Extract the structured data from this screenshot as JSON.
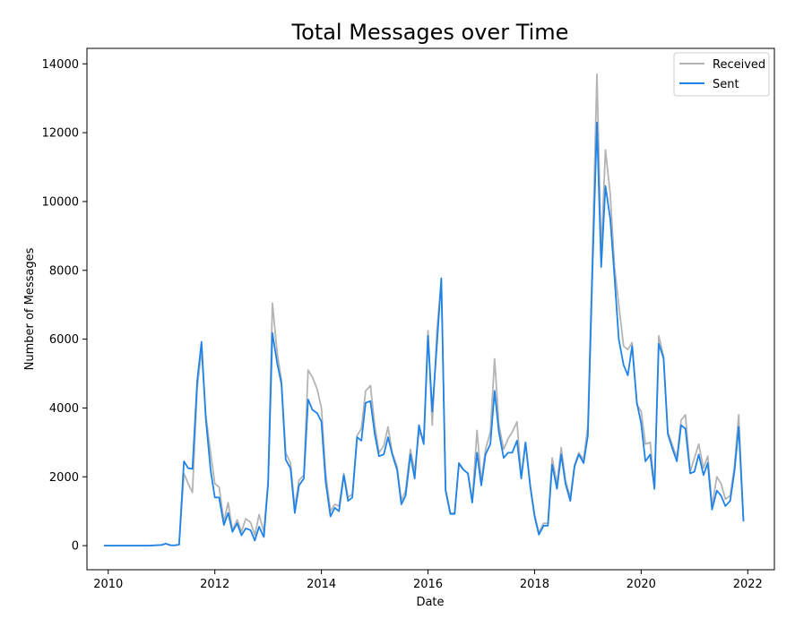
{
  "chart_data": {
    "type": "line",
    "title": "Total Messages over Time",
    "xlabel": "Date",
    "ylabel": "Number of Messages",
    "xlim": [
      2009.6,
      2022.5
    ],
    "ylim": [
      -700,
      14450
    ],
    "x_ticks": [
      2010,
      2012,
      2014,
      2016,
      2018,
      2020,
      2022
    ],
    "y_ticks": [
      0,
      2000,
      4000,
      6000,
      8000,
      10000,
      12000,
      14000
    ],
    "legend_position": "top-right",
    "grid": false,
    "series": [
      {
        "name": "Received",
        "color": "#b4b4b4",
        "points": [
          [
            2009.92,
            0
          ],
          [
            2010.5,
            0
          ],
          [
            2010.75,
            0
          ],
          [
            2011.0,
            20
          ],
          [
            2011.08,
            60
          ],
          [
            2011.17,
            10
          ],
          [
            2011.25,
            10
          ],
          [
            2011.33,
            30
          ],
          [
            2011.42,
            2100
          ],
          [
            2011.5,
            1800
          ],
          [
            2011.58,
            1550
          ],
          [
            2011.67,
            4600
          ],
          [
            2011.75,
            5700
          ],
          [
            2011.83,
            3800
          ],
          [
            2011.92,
            2700
          ],
          [
            2012.0,
            1800
          ],
          [
            2012.08,
            1700
          ],
          [
            2012.17,
            700
          ],
          [
            2012.25,
            1250
          ],
          [
            2012.33,
            450
          ],
          [
            2012.42,
            750
          ],
          [
            2012.5,
            400
          ],
          [
            2012.58,
            780
          ],
          [
            2012.67,
            680
          ],
          [
            2012.75,
            300
          ],
          [
            2012.83,
            900
          ],
          [
            2012.92,
            400
          ],
          [
            2013.0,
            1900
          ],
          [
            2013.08,
            7050
          ],
          [
            2013.17,
            5600
          ],
          [
            2013.25,
            4800
          ],
          [
            2013.33,
            2700
          ],
          [
            2013.42,
            2400
          ],
          [
            2013.5,
            1100
          ],
          [
            2013.58,
            1900
          ],
          [
            2013.67,
            2050
          ],
          [
            2013.75,
            5100
          ],
          [
            2013.83,
            4900
          ],
          [
            2013.92,
            4550
          ],
          [
            2014.0,
            4000
          ],
          [
            2014.08,
            2100
          ],
          [
            2014.17,
            1000
          ],
          [
            2014.25,
            1200
          ],
          [
            2014.33,
            1150
          ],
          [
            2014.42,
            2100
          ],
          [
            2014.5,
            1400
          ],
          [
            2014.58,
            1500
          ],
          [
            2014.67,
            3200
          ],
          [
            2014.75,
            3400
          ],
          [
            2014.83,
            4500
          ],
          [
            2014.92,
            4650
          ],
          [
            2015.0,
            3500
          ],
          [
            2015.08,
            2700
          ],
          [
            2015.17,
            2900
          ],
          [
            2015.25,
            3450
          ],
          [
            2015.33,
            2700
          ],
          [
            2015.42,
            2300
          ],
          [
            2015.5,
            1300
          ],
          [
            2015.58,
            1600
          ],
          [
            2015.67,
            2800
          ],
          [
            2015.75,
            2150
          ],
          [
            2015.83,
            3300
          ],
          [
            2015.92,
            3100
          ],
          [
            2016.0,
            6250
          ],
          [
            2016.08,
            3500
          ],
          [
            2016.17,
            6300
          ],
          [
            2016.25,
            7700
          ],
          [
            2016.33,
            1650
          ],
          [
            2016.42,
            950
          ],
          [
            2016.5,
            950
          ],
          [
            2016.58,
            2350
          ],
          [
            2016.67,
            2200
          ],
          [
            2016.75,
            2100
          ],
          [
            2016.83,
            1300
          ],
          [
            2016.92,
            3350
          ],
          [
            2017.0,
            1850
          ],
          [
            2017.08,
            2800
          ],
          [
            2017.17,
            3300
          ],
          [
            2017.25,
            5430
          ],
          [
            2017.33,
            3500
          ],
          [
            2017.42,
            2800
          ],
          [
            2017.5,
            3100
          ],
          [
            2017.58,
            3300
          ],
          [
            2017.67,
            3600
          ],
          [
            2017.75,
            2000
          ],
          [
            2017.83,
            3000
          ],
          [
            2017.92,
            1750
          ],
          [
            2018.0,
            900
          ],
          [
            2018.08,
            380
          ],
          [
            2018.17,
            650
          ],
          [
            2018.25,
            650
          ],
          [
            2018.33,
            2550
          ],
          [
            2018.42,
            1800
          ],
          [
            2018.5,
            2850
          ],
          [
            2018.58,
            1900
          ],
          [
            2018.67,
            1400
          ],
          [
            2018.75,
            2350
          ],
          [
            2018.83,
            2700
          ],
          [
            2018.92,
            2500
          ],
          [
            2019.0,
            3500
          ],
          [
            2019.08,
            8100
          ],
          [
            2019.17,
            13700
          ],
          [
            2019.25,
            8500
          ],
          [
            2019.33,
            11500
          ],
          [
            2019.42,
            10200
          ],
          [
            2019.5,
            8100
          ],
          [
            2019.58,
            7000
          ],
          [
            2019.67,
            5800
          ],
          [
            2019.75,
            5700
          ],
          [
            2019.83,
            5900
          ],
          [
            2019.92,
            4100
          ],
          [
            2020.0,
            3900
          ],
          [
            2020.08,
            2950
          ],
          [
            2020.17,
            3000
          ],
          [
            2020.25,
            1700
          ],
          [
            2020.33,
            6100
          ],
          [
            2020.42,
            5500
          ],
          [
            2020.5,
            3300
          ],
          [
            2020.58,
            2950
          ],
          [
            2020.67,
            2550
          ],
          [
            2020.75,
            3650
          ],
          [
            2020.83,
            3800
          ],
          [
            2020.92,
            2150
          ],
          [
            2021.0,
            2550
          ],
          [
            2021.08,
            2950
          ],
          [
            2021.17,
            2250
          ],
          [
            2021.25,
            2600
          ],
          [
            2021.33,
            1150
          ],
          [
            2021.42,
            2000
          ],
          [
            2021.5,
            1800
          ],
          [
            2021.58,
            1350
          ],
          [
            2021.67,
            1450
          ],
          [
            2021.75,
            2300
          ],
          [
            2021.83,
            3800
          ],
          [
            2021.92,
            750
          ]
        ]
      },
      {
        "name": "Sent",
        "color": "#1f83e8",
        "points": [
          [
            2009.92,
            0
          ],
          [
            2010.5,
            0
          ],
          [
            2010.75,
            0
          ],
          [
            2011.0,
            20
          ],
          [
            2011.08,
            60
          ],
          [
            2011.17,
            10
          ],
          [
            2011.25,
            10
          ],
          [
            2011.33,
            30
          ],
          [
            2011.42,
            2450
          ],
          [
            2011.5,
            2250
          ],
          [
            2011.58,
            2230
          ],
          [
            2011.67,
            4800
          ],
          [
            2011.75,
            5920
          ],
          [
            2011.83,
            3700
          ],
          [
            2011.92,
            2200
          ],
          [
            2012.0,
            1400
          ],
          [
            2012.08,
            1400
          ],
          [
            2012.17,
            600
          ],
          [
            2012.25,
            950
          ],
          [
            2012.33,
            400
          ],
          [
            2012.42,
            650
          ],
          [
            2012.5,
            300
          ],
          [
            2012.58,
            500
          ],
          [
            2012.67,
            450
          ],
          [
            2012.75,
            150
          ],
          [
            2012.83,
            550
          ],
          [
            2012.92,
            250
          ],
          [
            2013.0,
            1800
          ],
          [
            2013.08,
            6180
          ],
          [
            2013.17,
            5300
          ],
          [
            2013.25,
            4700
          ],
          [
            2013.33,
            2500
          ],
          [
            2013.42,
            2250
          ],
          [
            2013.5,
            950
          ],
          [
            2013.58,
            1750
          ],
          [
            2013.67,
            1950
          ],
          [
            2013.75,
            4250
          ],
          [
            2013.83,
            3950
          ],
          [
            2013.92,
            3850
          ],
          [
            2014.0,
            3600
          ],
          [
            2014.08,
            1850
          ],
          [
            2014.17,
            850
          ],
          [
            2014.25,
            1100
          ],
          [
            2014.33,
            1000
          ],
          [
            2014.42,
            2050
          ],
          [
            2014.5,
            1300
          ],
          [
            2014.58,
            1400
          ],
          [
            2014.67,
            3150
          ],
          [
            2014.75,
            3050
          ],
          [
            2014.83,
            4150
          ],
          [
            2014.92,
            4200
          ],
          [
            2015.0,
            3250
          ],
          [
            2015.08,
            2600
          ],
          [
            2015.17,
            2650
          ],
          [
            2015.25,
            3150
          ],
          [
            2015.33,
            2650
          ],
          [
            2015.42,
            2200
          ],
          [
            2015.5,
            1200
          ],
          [
            2015.58,
            1450
          ],
          [
            2015.67,
            2650
          ],
          [
            2015.75,
            1950
          ],
          [
            2015.83,
            3500
          ],
          [
            2015.92,
            2950
          ],
          [
            2016.0,
            6100
          ],
          [
            2016.08,
            3900
          ],
          [
            2016.17,
            5900
          ],
          [
            2016.25,
            7770
          ],
          [
            2016.33,
            1600
          ],
          [
            2016.42,
            920
          ],
          [
            2016.5,
            920
          ],
          [
            2016.58,
            2400
          ],
          [
            2016.67,
            2200
          ],
          [
            2016.75,
            2100
          ],
          [
            2016.83,
            1250
          ],
          [
            2016.92,
            2700
          ],
          [
            2017.0,
            1750
          ],
          [
            2017.08,
            2650
          ],
          [
            2017.17,
            2950
          ],
          [
            2017.25,
            4500
          ],
          [
            2017.33,
            3300
          ],
          [
            2017.42,
            2550
          ],
          [
            2017.5,
            2700
          ],
          [
            2017.58,
            2700
          ],
          [
            2017.67,
            3050
          ],
          [
            2017.75,
            1950
          ],
          [
            2017.83,
            3000
          ],
          [
            2017.92,
            1700
          ],
          [
            2018.0,
            850
          ],
          [
            2018.08,
            320
          ],
          [
            2018.17,
            580
          ],
          [
            2018.25,
            580
          ],
          [
            2018.33,
            2350
          ],
          [
            2018.42,
            1650
          ],
          [
            2018.5,
            2650
          ],
          [
            2018.58,
            1800
          ],
          [
            2018.67,
            1300
          ],
          [
            2018.75,
            2300
          ],
          [
            2018.83,
            2650
          ],
          [
            2018.92,
            2400
          ],
          [
            2019.0,
            3200
          ],
          [
            2019.08,
            7700
          ],
          [
            2019.17,
            12300
          ],
          [
            2019.25,
            8100
          ],
          [
            2019.33,
            10450
          ],
          [
            2019.42,
            9500
          ],
          [
            2019.5,
            7800
          ],
          [
            2019.58,
            6000
          ],
          [
            2019.67,
            5250
          ],
          [
            2019.75,
            4950
          ],
          [
            2019.83,
            5800
          ],
          [
            2019.92,
            4150
          ],
          [
            2020.0,
            3550
          ],
          [
            2020.08,
            2450
          ],
          [
            2020.17,
            2650
          ],
          [
            2020.25,
            1650
          ],
          [
            2020.33,
            5870
          ],
          [
            2020.42,
            5450
          ],
          [
            2020.5,
            3250
          ],
          [
            2020.58,
            2850
          ],
          [
            2020.67,
            2450
          ],
          [
            2020.75,
            3500
          ],
          [
            2020.83,
            3400
          ],
          [
            2020.92,
            2100
          ],
          [
            2021.0,
            2150
          ],
          [
            2021.08,
            2650
          ],
          [
            2021.17,
            2050
          ],
          [
            2021.25,
            2400
          ],
          [
            2021.33,
            1050
          ],
          [
            2021.42,
            1600
          ],
          [
            2021.5,
            1450
          ],
          [
            2021.58,
            1150
          ],
          [
            2021.67,
            1300
          ],
          [
            2021.75,
            2150
          ],
          [
            2021.83,
            3450
          ],
          [
            2021.92,
            700
          ]
        ]
      }
    ]
  }
}
